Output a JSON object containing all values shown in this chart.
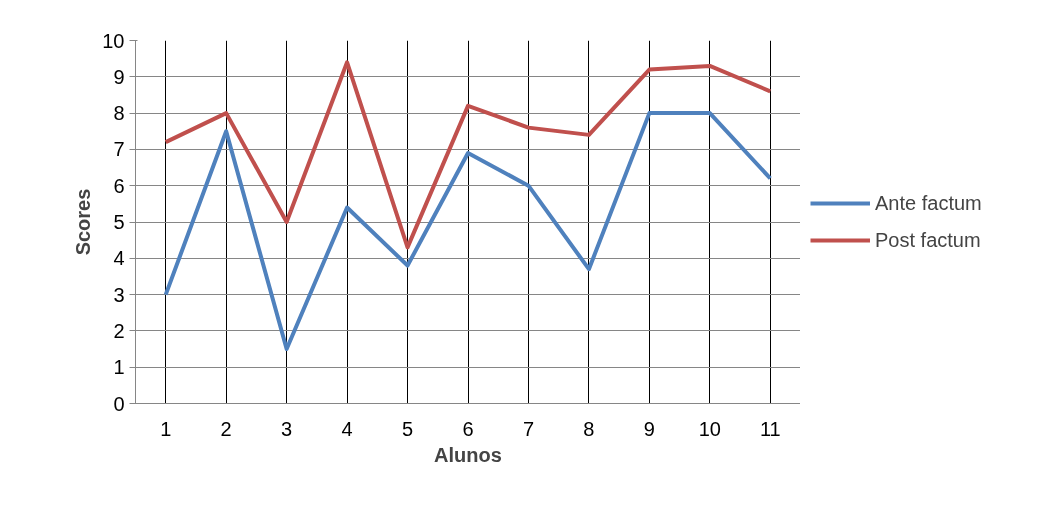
{
  "chart_data": {
    "type": "line",
    "xlabel": "Alunos",
    "ylabel": "Scores",
    "categories": [
      "1",
      "2",
      "3",
      "4",
      "5",
      "6",
      "7",
      "8",
      "9",
      "10",
      "11"
    ],
    "ylim": [
      0,
      10
    ],
    "yticks": [
      0,
      1,
      2,
      3,
      4,
      5,
      6,
      7,
      8,
      9,
      10
    ],
    "grid": true,
    "legend": "right",
    "line_style": "solid",
    "series": [
      {
        "name": "Ante factum",
        "color": "#4f81bd",
        "values": [
          3.0,
          7.5,
          1.5,
          5.4,
          3.8,
          6.9,
          6.0,
          3.7,
          8.0,
          8.0,
          6.2
        ]
      },
      {
        "name": "Post factum",
        "color": "#c0504d",
        "values": [
          7.2,
          8.0,
          5.0,
          9.4,
          4.3,
          8.2,
          7.6,
          7.4,
          9.2,
          9.3,
          8.6
        ]
      }
    ]
  }
}
